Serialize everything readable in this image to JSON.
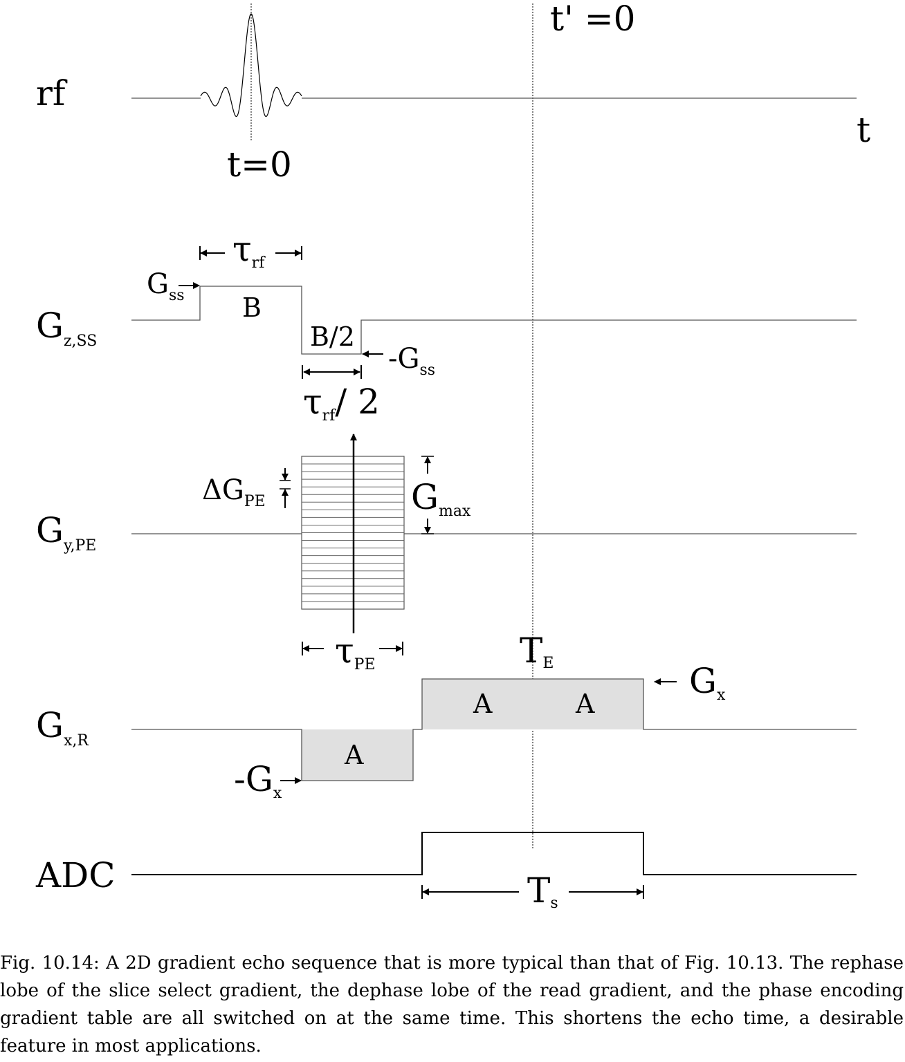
{
  "rows": {
    "rf": {
      "label": "rf"
    },
    "slice_select": {
      "label": "G",
      "label_sub": "z,SS"
    },
    "phase_encode": {
      "label": "G",
      "label_sub": "y,PE"
    },
    "readout": {
      "label": "G",
      "label_sub": "x,R"
    },
    "adc": {
      "label": "ADC"
    }
  },
  "time_axis_label": "t",
  "markers": {
    "t_zero": "t=0",
    "t_prime_zero": "t' =0"
  },
  "slice_select": {
    "g_ss": {
      "base": "G",
      "sub": "ss"
    },
    "neg_g_ss": {
      "base": "-G",
      "sub": "ss"
    },
    "lobe_main": "B",
    "lobe_rephase": "B/2",
    "tau_rf": {
      "base": "τ",
      "sub": "rf"
    },
    "tau_rf_half": {
      "base": "τ",
      "sub": "rf",
      "suffix": "/ 2"
    },
    "phase_steps": 20
  },
  "phase_encode": {
    "delta_g": {
      "base": "ΔG",
      "sub": "PE"
    },
    "g_max": {
      "base": "G",
      "sub": "max"
    },
    "tau_pe": {
      "base": "τ",
      "sub": "PE"
    }
  },
  "readout": {
    "dephase_lobe": "A",
    "read_lobe_left": "A",
    "read_lobe_right": "A",
    "neg_g_x": {
      "base": "-G",
      "sub": "x"
    },
    "g_x": {
      "base": "G",
      "sub": "x"
    },
    "t_e": {
      "base": "T",
      "sub": "E"
    },
    "lobe_fill": "#e0e0e0"
  },
  "adc": {
    "t_s": {
      "base": "T",
      "sub": "s"
    }
  },
  "caption": "Fig. 10.14: A 2D gradient echo sequence that is more typical than that of Fig. 10.13. The rephase lobe of the slice select gradient, the dephase lobe of the read gradient, and the phase encoding gradient table are all switched on at the same time.  This shortens the echo time, a desirable feature in most applications."
}
